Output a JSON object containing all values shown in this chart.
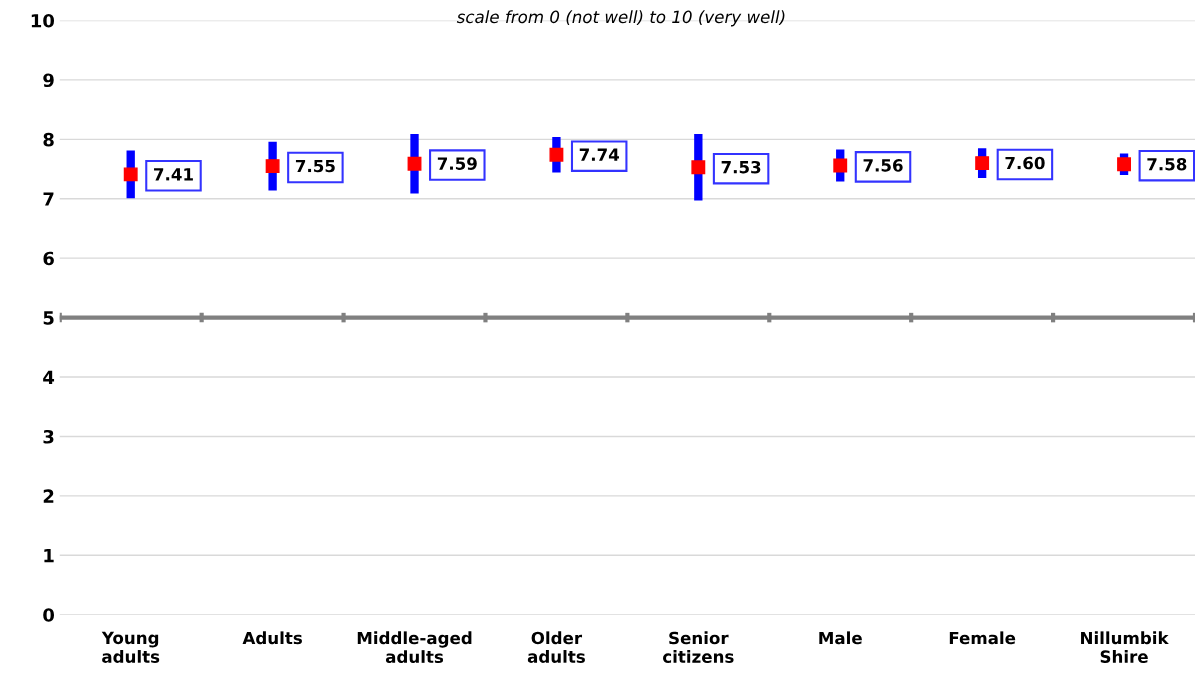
{
  "chart_data": {
    "type": "scatter",
    "subtitle": "scale from 0 (not well) to 10 (very well)",
    "categories": [
      "Young\nadults",
      "Adults",
      "Middle-aged\nadults",
      "Older\nadults",
      "Senior\ncitizens",
      "Male",
      "Female",
      "Nillumbik\nShire"
    ],
    "series": [
      {
        "color": "#ff0000",
        "values": [
          7.41,
          7.55,
          7.59,
          7.74,
          7.53,
          7.56,
          7.6,
          7.58
        ],
        "errors": [
          0.4,
          0.41,
          0.5,
          0.3,
          0.56,
          0.27,
          0.25,
          0.18
        ],
        "value_labels": [
          "7.41",
          "7.55",
          "7.59",
          "7.74",
          "7.53",
          "7.56",
          "7.60",
          "7.58"
        ]
      }
    ],
    "ylim": [
      0,
      10
    ],
    "yticks": [
      0,
      1,
      2,
      3,
      4,
      5,
      6,
      7,
      8,
      9,
      10
    ],
    "grid": "y",
    "marker": "square",
    "legend": false,
    "ref_lines": [
      {
        "axis": "y",
        "value": 5,
        "color": "#808080"
      }
    ]
  }
}
